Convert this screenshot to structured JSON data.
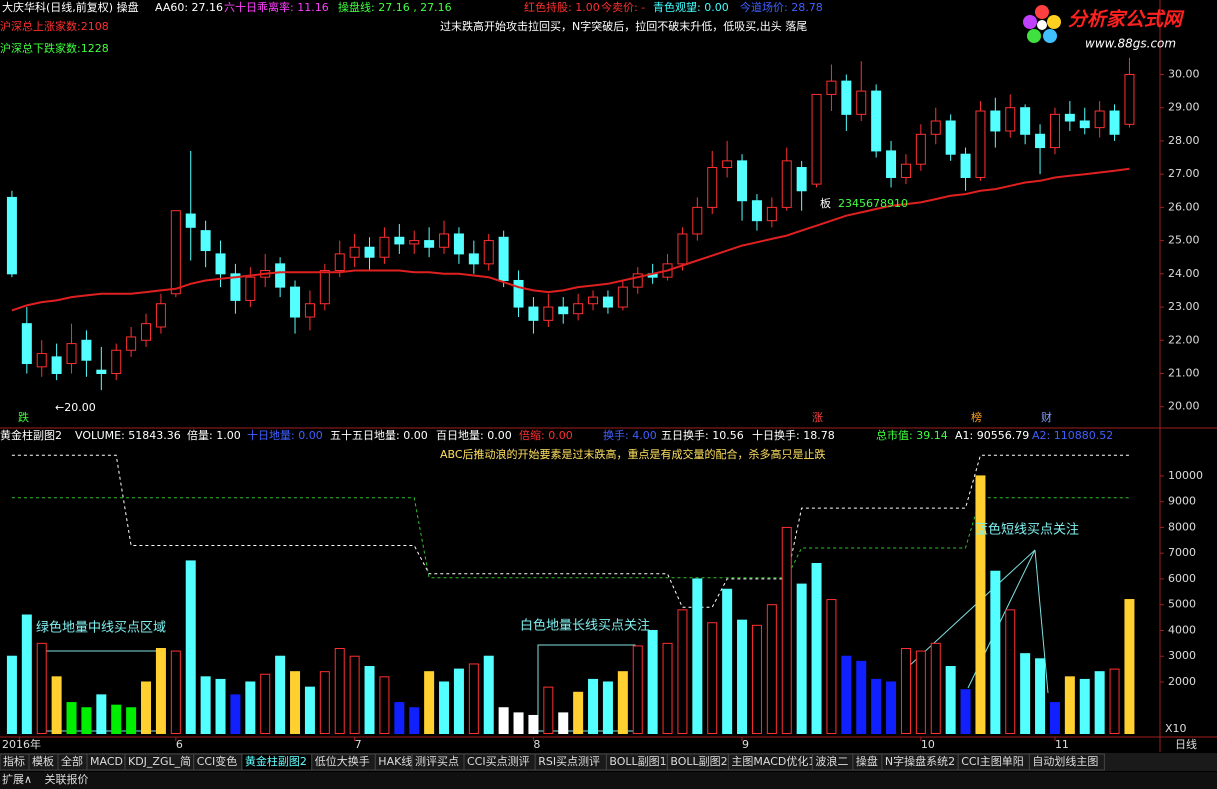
{
  "header": {
    "items": [
      {
        "text": "大庆华科(日线,前复权) 操盘",
        "color": "#ffffff"
      },
      {
        "text": "AA60: 27.16",
        "color": "#ffffff"
      },
      {
        "text": "六十日乖离率: 11.16",
        "color": "#ff40ff"
      },
      {
        "text": "操盘线: 27.16 , 27.16",
        "color": "#40ff40"
      },
      {
        "text": "红色持股: 1.00",
        "color": "#ff3030"
      },
      {
        "text": "今卖价: -",
        "color": "#ff3030"
      },
      {
        "text": "青色观望: 0.00",
        "color": "#40ffff"
      },
      {
        "text": "今道场价: 28.78",
        "color": "#4060ff"
      }
    ],
    "left_notes": [
      {
        "text": "沪深总上涨家数:2108",
        "color": "#ff3030"
      },
      {
        "text": "沪深总下跌家数:1228",
        "color": "#40ff40"
      }
    ],
    "note": "过末跌高开始攻击拉回买，N字突破后，拉回不破末升低，低吸买,出头 落尾"
  },
  "logo": {
    "name": "分析家公式网",
    "url": "www.88gs.com"
  },
  "chart_data": [
    {
      "type": "candlestick",
      "up_color": "#ff3030",
      "down_color": "#54ffff",
      "open": [
        26.3,
        22.5,
        21.2,
        21.5,
        21.3,
        22.0,
        21.1,
        21.0,
        21.7,
        22.0,
        22.4,
        23.4,
        25.8,
        25.3,
        24.6,
        24.0,
        23.2,
        23.9,
        24.3,
        23.6,
        22.7,
        23.1,
        24.1,
        24.5,
        24.8,
        24.5,
        25.1,
        24.9,
        25.0,
        24.8,
        25.2,
        24.6,
        24.3,
        25.1,
        23.8,
        23.0,
        22.6,
        23.0,
        22.8,
        23.1,
        23.3,
        23.0,
        23.6,
        24.0,
        23.9,
        24.3,
        25.2,
        26.0,
        27.2,
        27.4,
        26.2,
        25.6,
        26.0,
        27.2,
        26.7,
        29.4,
        29.8,
        28.8,
        29.5,
        27.7,
        26.9,
        27.3,
        28.2,
        28.6,
        27.6,
        26.9,
        28.9,
        28.3,
        29.0,
        28.2,
        27.8,
        28.8,
        28.6,
        28.4,
        28.9,
        28.5
      ],
      "high": [
        26.5,
        23.0,
        22.0,
        21.9,
        22.5,
        22.3,
        21.8,
        21.9,
        22.4,
        22.8,
        23.4,
        25.9,
        27.7,
        25.6,
        25.0,
        24.3,
        24.2,
        24.6,
        24.5,
        23.8,
        23.5,
        24.3,
        25.0,
        25.2,
        25.1,
        25.4,
        25.5,
        25.3,
        25.4,
        25.6,
        25.4,
        25.0,
        25.2,
        25.3,
        24.1,
        23.3,
        23.4,
        23.3,
        23.4,
        23.5,
        23.5,
        23.8,
        24.2,
        24.3,
        24.6,
        25.4,
        26.3,
        27.7,
        28.0,
        27.6,
        26.4,
        26.3,
        27.8,
        27.4,
        29.4,
        30.3,
        30.0,
        30.4,
        29.7,
        28.0,
        27.6,
        28.5,
        29.0,
        28.8,
        27.8,
        29.2,
        29.3,
        29.4,
        29.1,
        28.5,
        29.0,
        29.2,
        29.0,
        29.2,
        29.1,
        30.5
      ],
      "low": [
        23.9,
        21.0,
        20.9,
        20.8,
        21.0,
        20.9,
        20.5,
        20.8,
        21.5,
        21.8,
        22.2,
        23.3,
        24.4,
        24.2,
        23.6,
        22.8,
        23.0,
        23.6,
        23.3,
        22.2,
        22.3,
        22.9,
        23.9,
        24.2,
        24.1,
        24.3,
        24.6,
        24.6,
        24.5,
        24.6,
        24.3,
        24.0,
        24.1,
        23.6,
        22.7,
        22.2,
        22.4,
        22.5,
        22.6,
        22.9,
        22.8,
        22.9,
        23.4,
        23.7,
        23.8,
        24.1,
        25.0,
        25.8,
        26.9,
        25.6,
        25.3,
        25.4,
        25.9,
        25.9,
        26.6,
        28.9,
        28.3,
        28.6,
        27.5,
        26.6,
        26.7,
        27.1,
        27.9,
        27.4,
        26.5,
        26.8,
        27.8,
        28.1,
        27.9,
        27.0,
        27.6,
        28.3,
        28.2,
        28.1,
        28.0,
        28.4
      ],
      "close": [
        24.0,
        21.3,
        21.6,
        21.0,
        21.9,
        21.4,
        21.0,
        21.7,
        22.1,
        22.5,
        23.1,
        25.9,
        25.4,
        24.7,
        24.0,
        23.2,
        23.9,
        24.1,
        23.6,
        22.7,
        23.1,
        24.1,
        24.6,
        24.8,
        24.5,
        25.1,
        24.9,
        25.0,
        24.8,
        25.2,
        24.6,
        24.3,
        25.0,
        23.8,
        23.0,
        22.6,
        23.0,
        22.8,
        23.1,
        23.3,
        23.0,
        23.6,
        24.0,
        23.9,
        24.3,
        25.2,
        26.0,
        27.2,
        27.4,
        26.2,
        25.6,
        26.0,
        27.4,
        26.5,
        29.4,
        29.8,
        28.8,
        29.5,
        27.7,
        26.9,
        27.3,
        28.2,
        28.6,
        27.6,
        26.9,
        28.9,
        28.3,
        29.0,
        28.2,
        27.8,
        28.8,
        28.6,
        28.4,
        28.9,
        28.2,
        30.0
      ],
      "ma": {
        "color": "#e02020",
        "values": [
          22.9,
          23.05,
          23.15,
          23.2,
          23.3,
          23.35,
          23.4,
          23.4,
          23.4,
          23.45,
          23.5,
          23.55,
          23.7,
          23.8,
          23.85,
          23.9,
          23.95,
          24.0,
          24.05,
          24.05,
          24.05,
          24.05,
          24.05,
          24.1,
          24.1,
          24.1,
          24.1,
          24.05,
          24.05,
          24.0,
          24.0,
          23.95,
          23.9,
          23.75,
          23.6,
          23.5,
          23.45,
          23.5,
          23.6,
          23.65,
          23.7,
          23.8,
          23.9,
          24.0,
          24.1,
          24.25,
          24.4,
          24.55,
          24.7,
          24.85,
          24.95,
          25.05,
          25.15,
          25.3,
          25.45,
          25.6,
          25.75,
          25.85,
          25.95,
          26.05,
          26.1,
          26.15,
          26.25,
          26.35,
          26.4,
          26.5,
          26.55,
          26.65,
          26.75,
          26.8,
          26.9,
          26.95,
          27.0,
          27.05,
          27.1,
          27.16
        ]
      },
      "xlim": [
        -0.8,
        77.05
      ],
      "ylim": [
        19.45,
        31.7
      ],
      "yticks": [
        {
          "value": 20,
          "label": "20.00"
        },
        {
          "value": 21,
          "label": "21.00"
        },
        {
          "value": 22,
          "label": "22.00"
        },
        {
          "value": 23,
          "label": "23.00"
        },
        {
          "value": 24,
          "label": "24.00"
        },
        {
          "value": 25,
          "label": "25.00"
        },
        {
          "value": 26,
          "label": "26.00"
        },
        {
          "value": 27,
          "label": "27.00"
        },
        {
          "value": 28,
          "label": "28.00"
        },
        {
          "value": 29,
          "label": "29.00"
        },
        {
          "value": 30,
          "label": "30.00"
        }
      ],
      "annotations": [
        {
          "text": "←20.00",
          "color": "#ffffff"
        },
        {
          "text": "板",
          "color": "#ffffff"
        },
        {
          "text": "2345678910",
          "color": "#40ff40"
        },
        {
          "text": "跌",
          "color": "#40ff40"
        },
        {
          "text": "涨",
          "color": "#ff4040"
        },
        {
          "text": "榜",
          "color": "#ffa020"
        },
        {
          "text": "财",
          "color": "#80a0ff"
        }
      ]
    },
    {
      "type": "bar",
      "title": "黄金柱副图2",
      "items": [
        {
          "text": "VOLUME: 51843.36",
          "color": "#ffffff"
        },
        {
          "text": "倍量: 1.00",
          "color": "#ffffff"
        },
        {
          "text": "十日地量: 0.00",
          "color": "#4060ff"
        },
        {
          "text": "五十五日地量: 0.00",
          "color": "#ffffff"
        },
        {
          "text": "百日地量: 0.00",
          "color": "#ffffff"
        },
        {
          "text": "倍缩: 0.00",
          "color": "#ff3030"
        },
        {
          "text": "换手: 4.00",
          "color": "#4060ff"
        },
        {
          "text": "五日换手: 10.56",
          "color": "#ffffff"
        },
        {
          "text": "十日换手: 18.78",
          "color": "#ffffff"
        },
        {
          "text": "总市值: 39.14",
          "color": "#40ff40"
        },
        {
          "text": "A1: 90556.79",
          "color": "#ffffff"
        },
        {
          "text": "A2: 110880.52",
          "color": "#4060ff"
        }
      ],
      "subtitle": "ABC后推动浪的开始要素是过末跌高，重点是有成交量的配合，杀多高只是止跌",
      "values": [
        3000,
        4600,
        3500,
        2200,
        1200,
        1000,
        1500,
        1100,
        1000,
        2000,
        3300,
        3200,
        6700,
        2200,
        2100,
        1500,
        2000,
        2300,
        3000,
        2400,
        1800,
        2400,
        3300,
        3000,
        2600,
        2200,
        1200,
        1000,
        2400,
        2000,
        2500,
        2700,
        3000,
        1000,
        800,
        700,
        1800,
        800,
        1600,
        2100,
        2000,
        2400,
        3400,
        4000,
        3500,
        4800,
        6000,
        4300,
        5600,
        4400,
        4200,
        5000,
        8000,
        5800,
        6600,
        5200,
        3000,
        2800,
        2100,
        2000,
        3300,
        3200,
        3500,
        2600,
        1700,
        10000,
        6300,
        4800,
        3100,
        2900,
        1200,
        2200,
        2100,
        2400,
        2500,
        5200
      ],
      "colors": [
        "#54ffff",
        "#54ffff",
        "#ff3030",
        "#ffd030",
        "#00ee00",
        "#00ee00",
        "#54ffff",
        "#00ee00",
        "#00ee00",
        "#ffd030",
        "#ffd030",
        "#ff3030",
        "#54ffff",
        "#54ffff",
        "#54ffff",
        "#1020ff",
        "#54ffff",
        "#ff3030",
        "#54ffff",
        "#ffd030",
        "#54ffff",
        "#ff3030",
        "#ff3030",
        "#ff3030",
        "#54ffff",
        "#ff3030",
        "#1020ff",
        "#1020ff",
        "#ffd030",
        "#54ffff",
        "#54ffff",
        "#ff3030",
        "#54ffff",
        "#ffffff",
        "#ffffff",
        "#ffffff",
        "#ff3030",
        "#ffffff",
        "#ffd030",
        "#54ffff",
        "#54ffff",
        "#ffd030",
        "#ff3030",
        "#54ffff",
        "#ff3030",
        "#ff3030",
        "#54ffff",
        "#ff3030",
        "#54ffff",
        "#54ffff",
        "#ff3030",
        "#ff3030",
        "#ff3030",
        "#54ffff",
        "#54ffff",
        "#ff3030",
        "#1020ff",
        "#1020ff",
        "#1020ff",
        "#1020ff",
        "#ff3030",
        "#ff3030",
        "#ff3030",
        "#54ffff",
        "#1020ff",
        "#ffd030",
        "#54ffff",
        "#ff3030",
        "#54ffff",
        "#54ffff",
        "#1020ff",
        "#ffd030",
        "#54ffff",
        "#54ffff",
        "#ff3030",
        "#ffd030"
      ],
      "lines": [
        {
          "color": "#ffffff",
          "values": [
            10800,
            10800,
            10800,
            10800,
            10800,
            10800,
            10800,
            10800,
            7300,
            7300,
            7300,
            7300,
            7300,
            7300,
            7300,
            7300,
            7300,
            7300,
            7300,
            7300,
            7300,
            7300,
            7300,
            7300,
            7300,
            7300,
            7300,
            7300,
            6200,
            6200,
            6200,
            6200,
            6200,
            6200,
            6200,
            6200,
            6200,
            6200,
            6200,
            6200,
            6200,
            6200,
            6200,
            6200,
            6200,
            4900,
            4900,
            4900,
            6000,
            6000,
            6000,
            6000,
            6000,
            8750,
            8750,
            8750,
            8750,
            8750,
            8750,
            8750,
            8750,
            8750,
            8750,
            8750,
            8750,
            10800,
            10800,
            10800,
            10800,
            10800,
            10800,
            10800,
            10800,
            10800,
            10800,
            10800
          ]
        },
        {
          "color": "#30c030",
          "values": [
            9150,
            9150,
            9150,
            9150,
            9150,
            9150,
            9150,
            9150,
            9150,
            9150,
            9150,
            9150,
            9150,
            9150,
            9150,
            9150,
            9150,
            9150,
            9150,
            9150,
            9150,
            9150,
            9150,
            9150,
            9150,
            9150,
            9150,
            9150,
            6050,
            6050,
            6050,
            6050,
            6050,
            6050,
            6050,
            6050,
            6050,
            6050,
            6050,
            6050,
            6050,
            6050,
            6050,
            6050,
            6050,
            6050,
            6050,
            6050,
            6050,
            6050,
            6050,
            6050,
            6050,
            7200,
            7200,
            7200,
            7200,
            7200,
            7200,
            7200,
            7200,
            7200,
            7200,
            7200,
            7200,
            9150,
            9150,
            9150,
            9150,
            9150,
            9150,
            9150,
            9150,
            9150,
            9150,
            9150
          ]
        }
      ],
      "xlim": [
        -0.8,
        77.05
      ],
      "ylim": [
        0,
        11200
      ],
      "yticks": [
        2000,
        3000,
        4000,
        5000,
        6000,
        7000,
        8000,
        9000,
        10000
      ],
      "unit_label": "X10",
      "xticks": [
        {
          "value": 0.5,
          "label": "2016年"
        },
        {
          "value": 11,
          "label": "6"
        },
        {
          "value": 23,
          "label": "7"
        },
        {
          "value": 35,
          "label": "8"
        },
        {
          "value": 49,
          "label": "9"
        },
        {
          "value": 61,
          "label": "10"
        },
        {
          "value": 70,
          "label": "11"
        }
      ],
      "period": "日线",
      "annotations": [
        "绿色地量中线买点区域",
        "白色地量长线买点关注",
        "蓝色短线买点关注"
      ]
    }
  ],
  "tabs": [
    "指标",
    "模板",
    "全部",
    "MACD1",
    "KDJ_ZGL_简",
    "CCI变色",
    "黄金柱副图2",
    "低位大换手",
    "HAK线",
    "测评买点",
    "CCI买点测评",
    "RSI买点测评",
    "BOLL副图1",
    "BOLL副图2",
    "主图MACD优化1",
    "波浪二",
    "操盘",
    "N字操盘系统2",
    "CCI主图单阳",
    "自动划线主图"
  ],
  "active_tab": "黄金柱副图2",
  "footer": [
    "扩展∧",
    "关联报价"
  ]
}
